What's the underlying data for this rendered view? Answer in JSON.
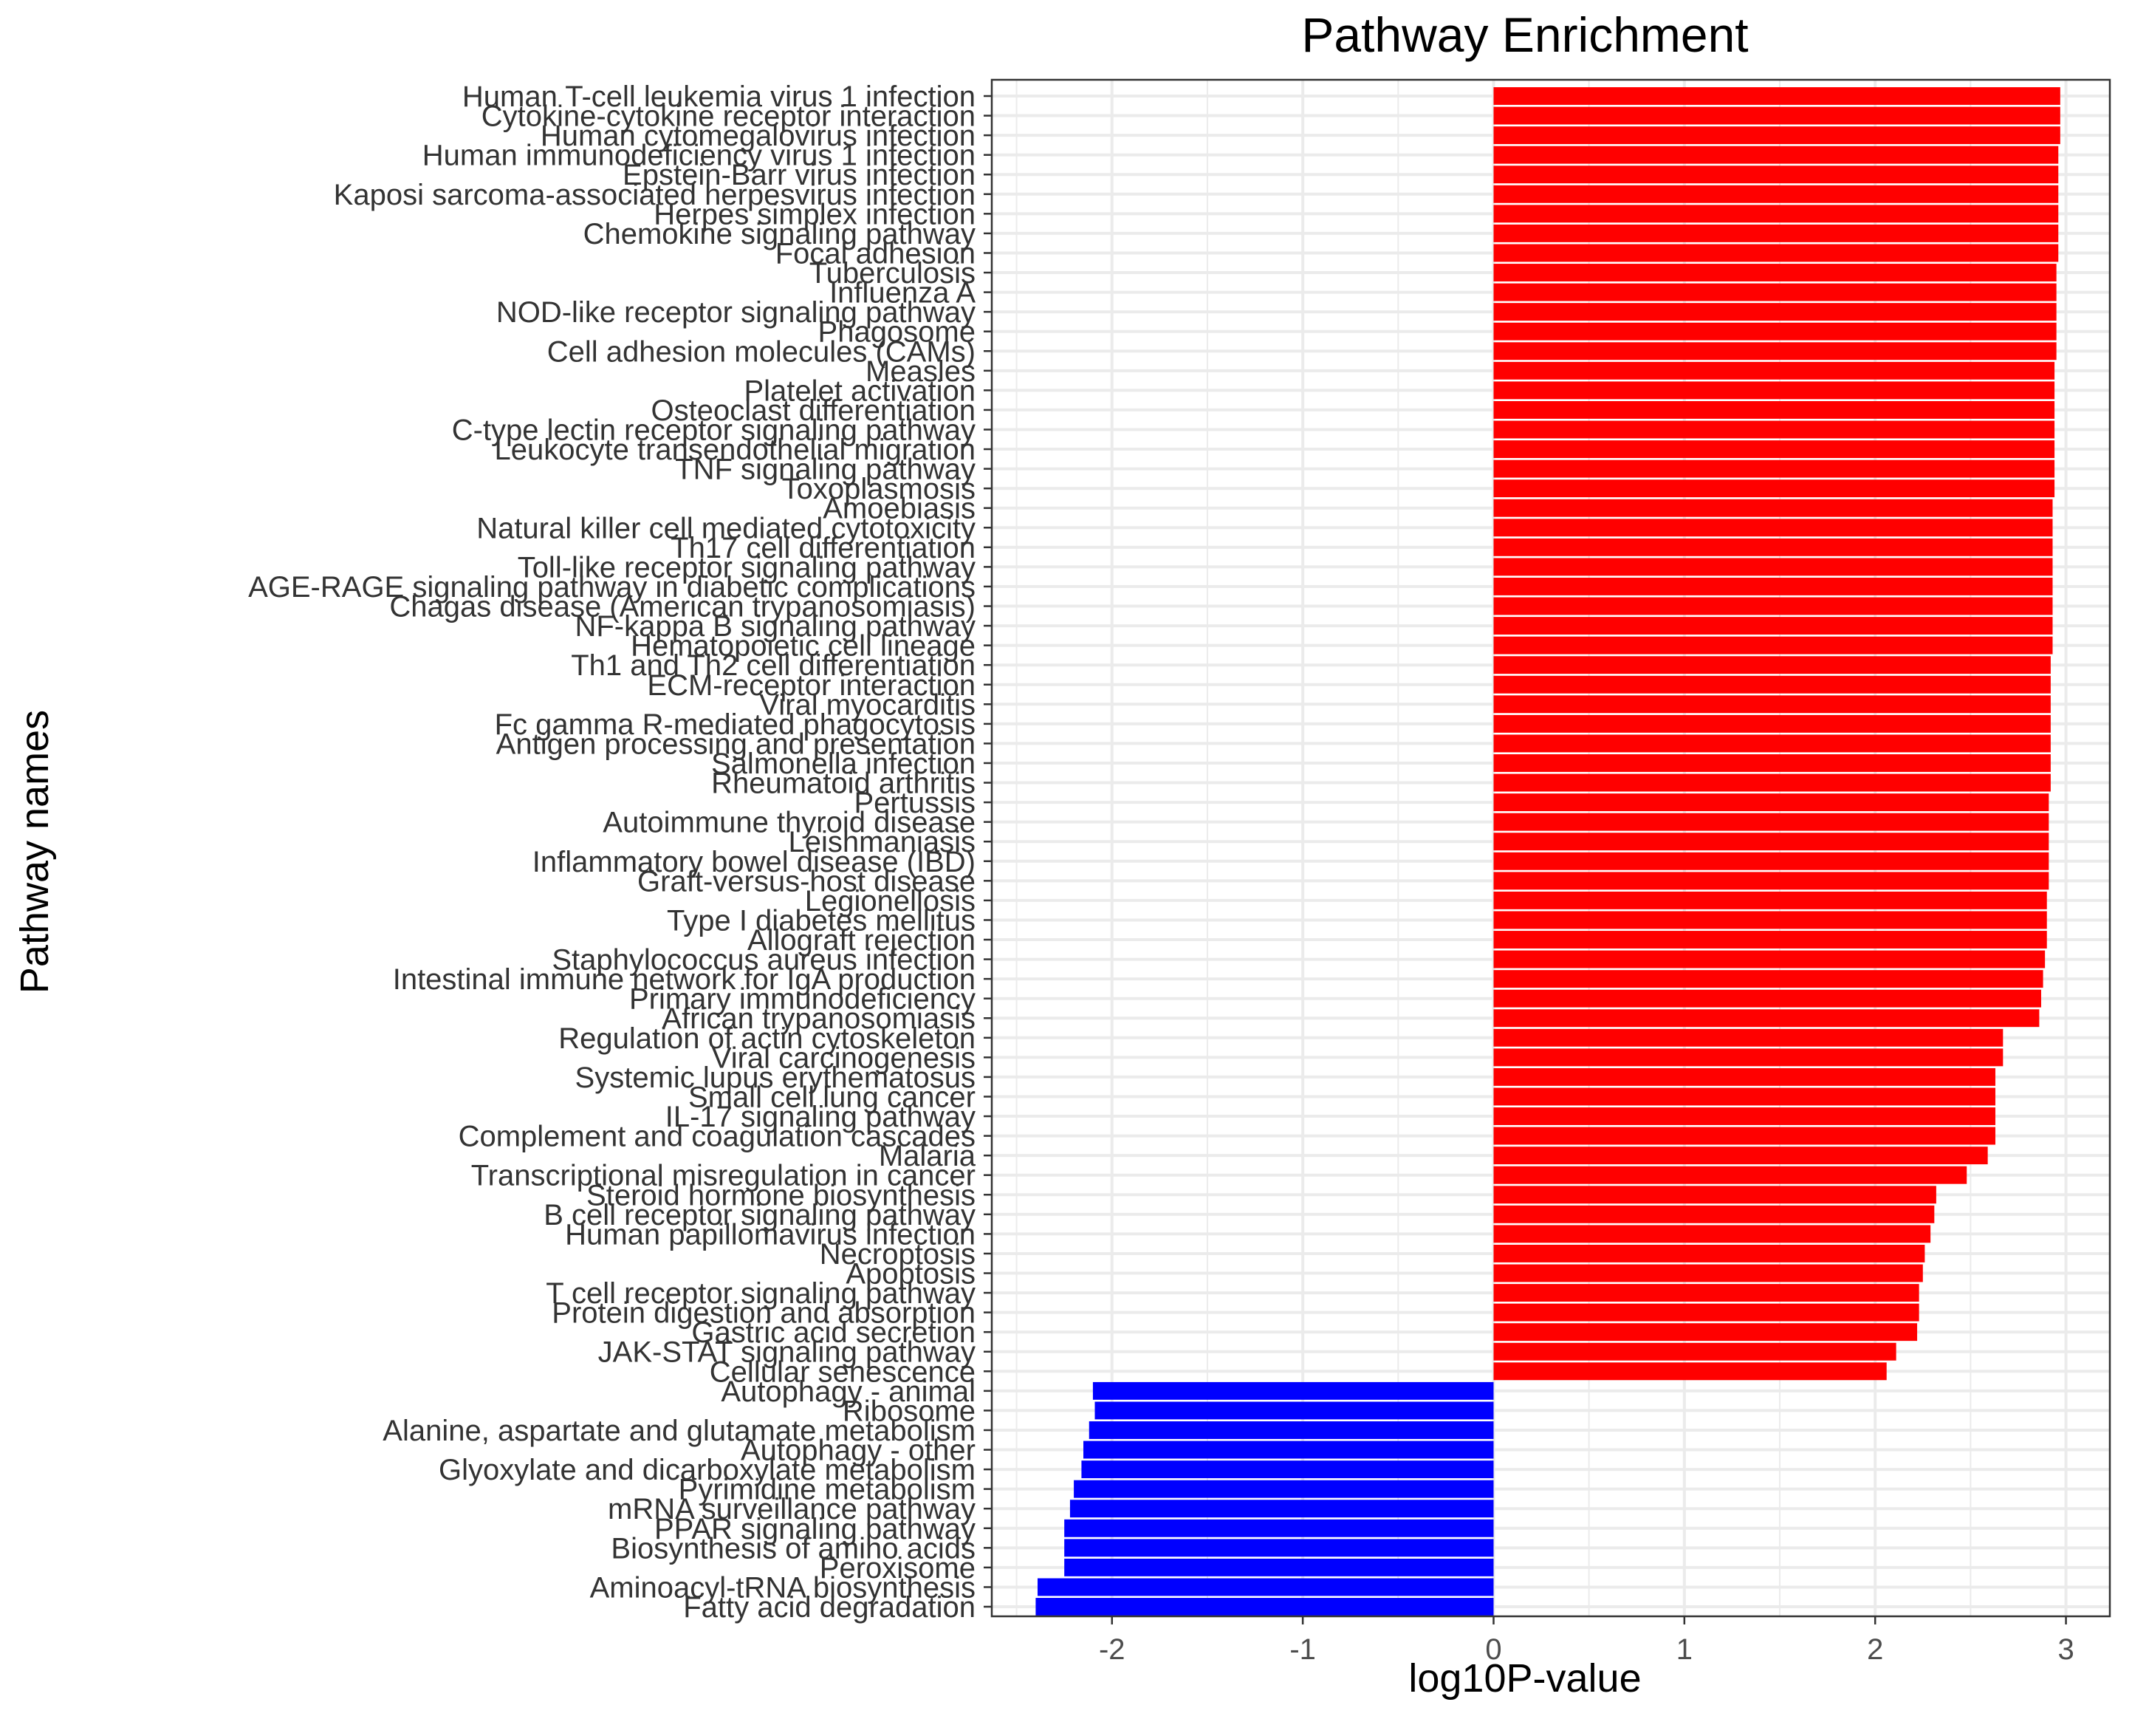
{
  "chart_data": {
    "type": "bar",
    "orientation": "horizontal",
    "title": "Pathway Enrichment",
    "xlabel": "log10P-value",
    "ylabel": "Pathway names",
    "xlim": [
      -2.63,
      3.23
    ],
    "xticks": [
      -2,
      -1,
      0,
      1,
      2,
      3
    ],
    "xtick_labels": [
      "-2",
      "-1",
      "0",
      "1",
      "2",
      "3"
    ],
    "grid": true,
    "legend": "none",
    "colors": {
      "positive": "#ff0000",
      "negative": "#0000ff",
      "grid": "#ebebeb",
      "border": "#333333"
    },
    "categories": [
      "Human T-cell leukemia virus 1 infection",
      "Cytokine-cytokine receptor interaction",
      "Human cytomegalovirus infection",
      "Human immunodeficiency virus 1 infection",
      "Epstein-Barr virus infection",
      "Kaposi sarcoma-associated herpesvirus infection",
      "Herpes simplex infection",
      "Chemokine signaling pathway",
      "Focal adhesion",
      "Tuberculosis",
      "Influenza A",
      "NOD-like receptor signaling pathway",
      "Phagosome",
      "Cell adhesion molecules (CAMs)",
      "Measles",
      "Platelet activation",
      "Osteoclast differentiation",
      "C-type lectin receptor signaling pathway",
      "Leukocyte transendothelial migration",
      "TNF signaling pathway",
      "Toxoplasmosis",
      "Amoebiasis",
      "Natural killer cell mediated cytotoxicity",
      "Th17 cell differentiation",
      "Toll-like receptor signaling pathway",
      "AGE-RAGE signaling pathway in diabetic complications",
      "Chagas disease (American trypanosomiasis)",
      "NF-kappa B signaling pathway",
      "Hematopoietic cell lineage",
      "Th1 and Th2 cell differentiation",
      "ECM-receptor interaction",
      "Viral myocarditis",
      "Fc gamma R-mediated phagocytosis",
      "Antigen processing and presentation",
      "Salmonella infection",
      "Rheumatoid arthritis",
      "Pertussis",
      "Autoimmune thyroid disease",
      "Leishmaniasis",
      "Inflammatory bowel disease (IBD)",
      "Graft-versus-host disease",
      "Legionellosis",
      "Type I diabetes mellitus",
      "Allograft rejection",
      "Staphylococcus aureus infection",
      "Intestinal immune network for IgA production",
      "Primary immunodeficiency",
      "African trypanosomiasis",
      "Regulation of actin cytoskeleton",
      "Viral carcinogenesis",
      "Systemic lupus erythematosus",
      "Small cell lung cancer",
      "IL-17 signaling pathway",
      "Complement and coagulation cascades",
      "Malaria",
      "Transcriptional misregulation in cancer",
      "Steroid hormone biosynthesis",
      "B cell receptor signaling pathway",
      "Human papillomavirus infection",
      "Necroptosis",
      "Apoptosis",
      "T cell receptor signaling pathway",
      "Protein digestion and absorption",
      "Gastric acid secretion",
      "JAK-STAT signaling pathway",
      "Cellular senescence",
      "Autophagy - animal",
      "Ribosome",
      "Alanine, aspartate and glutamate metabolism",
      "Autophagy - other",
      "Glyoxylate and dicarboxylate metabolism",
      "Pyrimidine metabolism",
      "mRNA surveillance pathway",
      "PPAR signaling pathway",
      "Biosynthesis of amino acids",
      "Peroxisome",
      "Aminoacyl-tRNA biosynthesis",
      "Fatty acid degradation"
    ],
    "values": [
      2.97,
      2.97,
      2.97,
      2.96,
      2.96,
      2.96,
      2.96,
      2.96,
      2.96,
      2.95,
      2.95,
      2.95,
      2.95,
      2.95,
      2.94,
      2.94,
      2.94,
      2.94,
      2.94,
      2.94,
      2.94,
      2.93,
      2.93,
      2.93,
      2.93,
      2.93,
      2.93,
      2.93,
      2.93,
      2.92,
      2.92,
      2.92,
      2.92,
      2.92,
      2.92,
      2.92,
      2.91,
      2.91,
      2.91,
      2.91,
      2.91,
      2.9,
      2.9,
      2.9,
      2.89,
      2.88,
      2.87,
      2.86,
      2.67,
      2.67,
      2.63,
      2.63,
      2.63,
      2.63,
      2.59,
      2.48,
      2.32,
      2.31,
      2.29,
      2.26,
      2.25,
      2.23,
      2.23,
      2.22,
      2.11,
      2.06,
      -2.1,
      -2.09,
      -2.12,
      -2.15,
      -2.16,
      -2.2,
      -2.22,
      -2.25,
      -2.25,
      -2.25,
      -2.39,
      -2.4
    ]
  }
}
